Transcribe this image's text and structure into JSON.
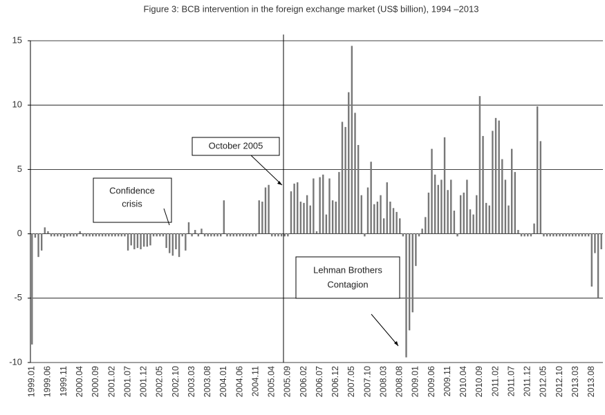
{
  "chart_data": {
    "type": "bar",
    "title": "Figure 3: BCB intervention in the foreign exchange market (US$ billion), 1994 –2013",
    "color": "#777777",
    "ylim": [
      -10,
      15
    ],
    "yticks": [
      -10,
      -5,
      0,
      5,
      10,
      15
    ],
    "grid": true,
    "annotations": [
      [
        "October 2005"
      ],
      [
        "Confidence",
        "crisis"
      ],
      [
        "Lehman Brothers",
        "Contagion"
      ]
    ],
    "categories": [
      "1999.01",
      null,
      null,
      null,
      null,
      "1999.06",
      null,
      null,
      null,
      null,
      "1999.11",
      null,
      null,
      null,
      null,
      "2000.04",
      null,
      null,
      null,
      null,
      "2000.09",
      null,
      null,
      null,
      null,
      "2001.02",
      null,
      null,
      null,
      null,
      "2001.07",
      null,
      null,
      null,
      null,
      "2001.12",
      null,
      null,
      null,
      null,
      "2002.05",
      null,
      null,
      null,
      null,
      "2002.10",
      null,
      null,
      null,
      null,
      "2003.03",
      null,
      null,
      null,
      null,
      "2003.08",
      null,
      null,
      null,
      null,
      "2004.01",
      null,
      null,
      null,
      null,
      "2004.06",
      null,
      null,
      null,
      null,
      "2004.11",
      null,
      null,
      null,
      null,
      "2005.04",
      null,
      null,
      null,
      null,
      "2005.09",
      null,
      null,
      null,
      null,
      "2006.02",
      null,
      null,
      null,
      null,
      "2006.07",
      null,
      null,
      null,
      null,
      "2006.12",
      null,
      null,
      null,
      null,
      "2007.05",
      null,
      null,
      null,
      null,
      "2007.10",
      null,
      null,
      null,
      null,
      "2008.03",
      null,
      null,
      null,
      null,
      "2008.08",
      null,
      null,
      null,
      null,
      "2009.01",
      null,
      null,
      null,
      null,
      "2009.06",
      null,
      null,
      null,
      null,
      "2009.11",
      null,
      null,
      null,
      null,
      "2010.04",
      null,
      null,
      null,
      null,
      "2010.09",
      null,
      null,
      null,
      null,
      "2011.02",
      null,
      null,
      null,
      null,
      "2011.07",
      null,
      null,
      null,
      null,
      "2011.12",
      null,
      null,
      null,
      null,
      "2012.05",
      null,
      null,
      null,
      null,
      "2012.10",
      null,
      null,
      null,
      null,
      "2013.03",
      null,
      null,
      null,
      null,
      "2013.08",
      null,
      null,
      null
    ],
    "values": [
      -8.6,
      -0.3,
      -1.8,
      -1.3,
      0.5,
      0.2,
      -0.2,
      -0.2,
      -0.2,
      -0.2,
      -0.3,
      -0.2,
      -0.2,
      -0.2,
      -0.2,
      0.2,
      -0.2,
      -0.2,
      -0.2,
      -0.2,
      -0.2,
      -0.2,
      -0.2,
      -0.2,
      -0.2,
      -0.2,
      -0.2,
      -0.2,
      -0.2,
      -0.2,
      -1.3,
      -0.9,
      -1.2,
      -1.1,
      -1.2,
      -1.0,
      -1.0,
      -0.9,
      -0.2,
      -0.2,
      -0.2,
      -0.2,
      -1.1,
      -1.5,
      -1.7,
      -1.2,
      -1.8,
      -0.2,
      -1.3,
      0.9,
      -0.2,
      0.3,
      -0.2,
      0.4,
      -0.2,
      -0.2,
      -0.2,
      -0.2,
      -0.2,
      -0.2,
      2.6,
      -0.2,
      -0.2,
      -0.2,
      -0.2,
      -0.2,
      -0.2,
      -0.2,
      -0.2,
      -0.2,
      -0.2,
      2.6,
      2.5,
      3.6,
      3.8,
      -0.2,
      -0.2,
      -0.2,
      -0.2,
      -0.2,
      -0.2,
      3.3,
      3.9,
      4.0,
      2.5,
      2.4,
      3.0,
      2.2,
      4.3,
      0.2,
      4.4,
      4.6,
      1.5,
      4.3,
      2.6,
      2.5,
      4.8,
      8.7,
      8.3,
      11.0,
      14.6,
      9.4,
      6.9,
      3.0,
      -0.2,
      3.6,
      5.6,
      2.3,
      2.5,
      3.0,
      1.2,
      4.0,
      2.5,
      2.0,
      1.7,
      1.2,
      -0.2,
      -9.6,
      -7.5,
      -6.1,
      -2.5,
      -0.2,
      0.4,
      1.3,
      3.2,
      6.6,
      4.6,
      3.8,
      4.2,
      7.5,
      3.4,
      4.2,
      1.8,
      -0.2,
      3.0,
      3.2,
      4.2,
      1.9,
      1.5,
      3.0,
      10.7,
      7.6,
      2.4,
      2.2,
      8.0,
      9.0,
      8.8,
      5.8,
      4.2,
      2.2,
      6.6,
      4.8,
      0.3,
      -0.2,
      -0.2,
      -0.2,
      -0.2,
      0.8,
      9.9,
      7.2,
      -0.2,
      -0.2,
      -0.2,
      -0.2,
      -0.2,
      -0.2,
      -0.2,
      -0.2,
      -0.2,
      -0.2,
      -0.2,
      -0.2,
      -0.2,
      -0.2,
      -0.2,
      -4.1,
      -1.5,
      -5.0,
      -1.2
    ]
  }
}
